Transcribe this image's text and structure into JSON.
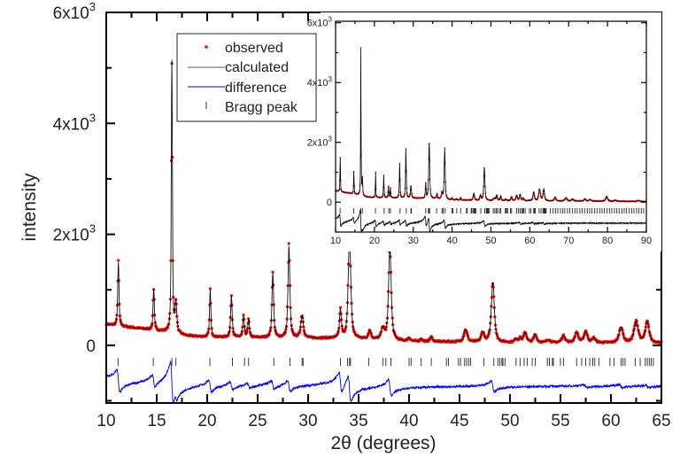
{
  "chart_data": [
    {
      "type": "line",
      "panel": "main",
      "xlabel": "2θ (degrees)",
      "ylabel": "intensity",
      "xlim": [
        10,
        65
      ],
      "ylim": [
        -1040,
        6000
      ],
      "xticks": [
        "10",
        "15",
        "20",
        "25",
        "30",
        "35",
        "40",
        "45",
        "50",
        "55",
        "60",
        "65"
      ],
      "yticks": [
        {
          "value": 6000,
          "base": "6x10",
          "exp": "3"
        },
        {
          "value": 4000,
          "base": "4x10",
          "exp": "3"
        },
        {
          "value": 2000,
          "base": "2x10",
          "exp": "3"
        },
        {
          "value": 0,
          "base": "0",
          "exp": ""
        }
      ],
      "legend": {
        "position": "top-center",
        "entries": [
          {
            "label": "observed",
            "marker": "dot",
            "color": "#ff0000"
          },
          {
            "label": "calculated",
            "marker": "line",
            "color": "#555555"
          },
          {
            "label": "difference",
            "marker": "line",
            "color": "#0000ff"
          },
          {
            "label": "Bragg peak",
            "marker": "tick",
            "color": "#555555"
          }
        ]
      },
      "bragg_offset": -300,
      "difference_offset": -720
    },
    {
      "type": "line",
      "panel": "inset",
      "xlim": [
        10,
        90
      ],
      "ylim": [
        -1000,
        6050
      ],
      "xticks": [
        "10",
        "20",
        "30",
        "40",
        "50",
        "60",
        "70",
        "80",
        "90"
      ],
      "yticks": [
        {
          "value": 6000,
          "base": "6x10",
          "exp": "3"
        },
        {
          "value": 4000,
          "base": "4x10",
          "exp": "3"
        },
        {
          "value": 2000,
          "base": "2x10",
          "exp": "3"
        },
        {
          "value": 0,
          "base": "0",
          "exp": ""
        }
      ],
      "bragg_offset": -290,
      "difference_offset": -690
    }
  ],
  "profile": {
    "background": [
      [
        10,
        380
      ],
      [
        11,
        350
      ],
      [
        12,
        330
      ],
      [
        14,
        290
      ],
      [
        16,
        240
      ],
      [
        18,
        170
      ],
      [
        20,
        150
      ],
      [
        25,
        140
      ],
      [
        30,
        130
      ],
      [
        33,
        125
      ],
      [
        36,
        110
      ],
      [
        40,
        70
      ],
      [
        50,
        50
      ],
      [
        65,
        40
      ],
      [
        90,
        25
      ]
    ],
    "peaks": [
      {
        "x": 11.2,
        "h": 1150,
        "w": 0.15
      },
      {
        "x": 14.7,
        "h": 750,
        "w": 0.15
      },
      {
        "x": 16.5,
        "h": 4900,
        "w": 0.13
      },
      {
        "x": 16.9,
        "h": 550,
        "w": 0.2
      },
      {
        "x": 20.3,
        "h": 850,
        "w": 0.15
      },
      {
        "x": 22.4,
        "h": 750,
        "w": 0.18
      },
      {
        "x": 23.6,
        "h": 380,
        "w": 0.18
      },
      {
        "x": 24.1,
        "h": 330,
        "w": 0.18
      },
      {
        "x": 26.5,
        "h": 1150,
        "w": 0.2
      },
      {
        "x": 28.1,
        "h": 1650,
        "w": 0.22
      },
      {
        "x": 29.4,
        "h": 400,
        "w": 0.3
      },
      {
        "x": 33.2,
        "h": 500,
        "w": 0.22
      },
      {
        "x": 34.1,
        "h": 1850,
        "w": 0.3
      },
      {
        "x": 36.1,
        "h": 150,
        "w": 0.3
      },
      {
        "x": 37.4,
        "h": 200,
        "w": 0.35
      },
      {
        "x": 38.1,
        "h": 1700,
        "w": 0.3
      },
      {
        "x": 40.0,
        "h": 60,
        "w": 0.3
      },
      {
        "x": 41.2,
        "h": 40,
        "w": 0.3
      },
      {
        "x": 42.2,
        "h": 80,
        "w": 0.3
      },
      {
        "x": 45.6,
        "h": 220,
        "w": 0.4
      },
      {
        "x": 47.3,
        "h": 170,
        "w": 0.35
      },
      {
        "x": 48.3,
        "h": 1080,
        "w": 0.35
      },
      {
        "x": 50.6,
        "h": 60,
        "w": 0.3
      },
      {
        "x": 51.0,
        "h": 70,
        "w": 0.3
      },
      {
        "x": 51.5,
        "h": 180,
        "w": 0.35
      },
      {
        "x": 52.5,
        "h": 140,
        "w": 0.35
      },
      {
        "x": 53.8,
        "h": 50,
        "w": 0.4
      },
      {
        "x": 55.3,
        "h": 120,
        "w": 0.4
      },
      {
        "x": 56.6,
        "h": 180,
        "w": 0.4
      },
      {
        "x": 57.5,
        "h": 200,
        "w": 0.4
      },
      {
        "x": 58.3,
        "h": 80,
        "w": 0.4
      },
      {
        "x": 61.0,
        "h": 280,
        "w": 0.45
      },
      {
        "x": 62.5,
        "h": 380,
        "w": 0.5
      },
      {
        "x": 63.6,
        "h": 370,
        "w": 0.45
      },
      {
        "x": 66.5,
        "h": 120,
        "w": 0.5
      },
      {
        "x": 69.3,
        "h": 100,
        "w": 0.6
      },
      {
        "x": 71.0,
        "h": 70,
        "w": 0.5
      },
      {
        "x": 74.2,
        "h": 70,
        "w": 0.5
      },
      {
        "x": 75.5,
        "h": 50,
        "w": 0.5
      },
      {
        "x": 79.8,
        "h": 150,
        "w": 0.6
      },
      {
        "x": 82.0,
        "h": 40,
        "w": 0.5
      },
      {
        "x": 88.0,
        "h": 40,
        "w": 0.5
      }
    ],
    "bragg_positions": [
      11.17,
      14.66,
      16.5,
      16.9,
      20.27,
      22.5,
      23.7,
      24.1,
      26.6,
      28.2,
      29.4,
      29.5,
      33.2,
      33.9,
      34.1,
      34.2,
      36.0,
      37.4,
      37.7,
      38.2,
      40.0,
      40.2,
      41.2,
      42.2,
      43.7,
      43.9,
      44.9,
      45.1,
      45.5,
      45.7,
      45.9,
      46.1,
      47.4,
      48.4,
      48.8,
      49.0,
      49.2,
      49.3,
      49.5,
      50.6,
      51.0,
      51.4,
      51.7,
      52.2,
      52.5,
      53.7,
      53.9,
      54.2,
      54.3,
      55.0,
      55.3,
      56.6,
      57.1,
      57.5,
      57.9,
      58.2,
      58.4,
      58.8,
      59.9,
      60.3,
      61.0,
      61.2,
      61.4,
      62.4,
      62.9,
      63.4,
      63.6,
      63.8,
      64.0,
      64.2,
      65.3,
      66.0,
      66.6,
      67.2,
      67.9,
      68.5,
      69.0,
      69.7,
      70.3,
      71.0,
      71.6,
      72.2,
      72.9,
      73.5,
      74.1,
      74.8,
      75.4,
      76.0,
      76.7,
      77.3,
      78.0,
      78.6,
      79.2,
      79.9,
      80.5,
      81.1,
      81.8,
      82.4,
      83.0,
      83.7,
      84.3,
      84.9,
      85.6,
      86.2,
      86.8,
      87.5,
      88.1,
      88.7,
      89.3
    ],
    "difference_features": [
      {
        "x": 11.2,
        "a": 220
      },
      {
        "x": 14.7,
        "a": 120
      },
      {
        "x": 16.5,
        "a": 420
      },
      {
        "x": 16.9,
        "a": 80
      },
      {
        "x": 20.3,
        "a": 120
      },
      {
        "x": 22.4,
        "a": 80
      },
      {
        "x": 24.1,
        "a": 50
      },
      {
        "x": 26.5,
        "a": 90
      },
      {
        "x": 28.1,
        "a": 110
      },
      {
        "x": 33.2,
        "a": 200
      },
      {
        "x": 34.1,
        "a": 260
      },
      {
        "x": 38.1,
        "a": 160
      },
      {
        "x": 48.3,
        "a": 110
      },
      {
        "x": 57.5,
        "a": 30
      },
      {
        "x": 61.0,
        "a": 30
      },
      {
        "x": 63.6,
        "a": 30
      }
    ]
  }
}
